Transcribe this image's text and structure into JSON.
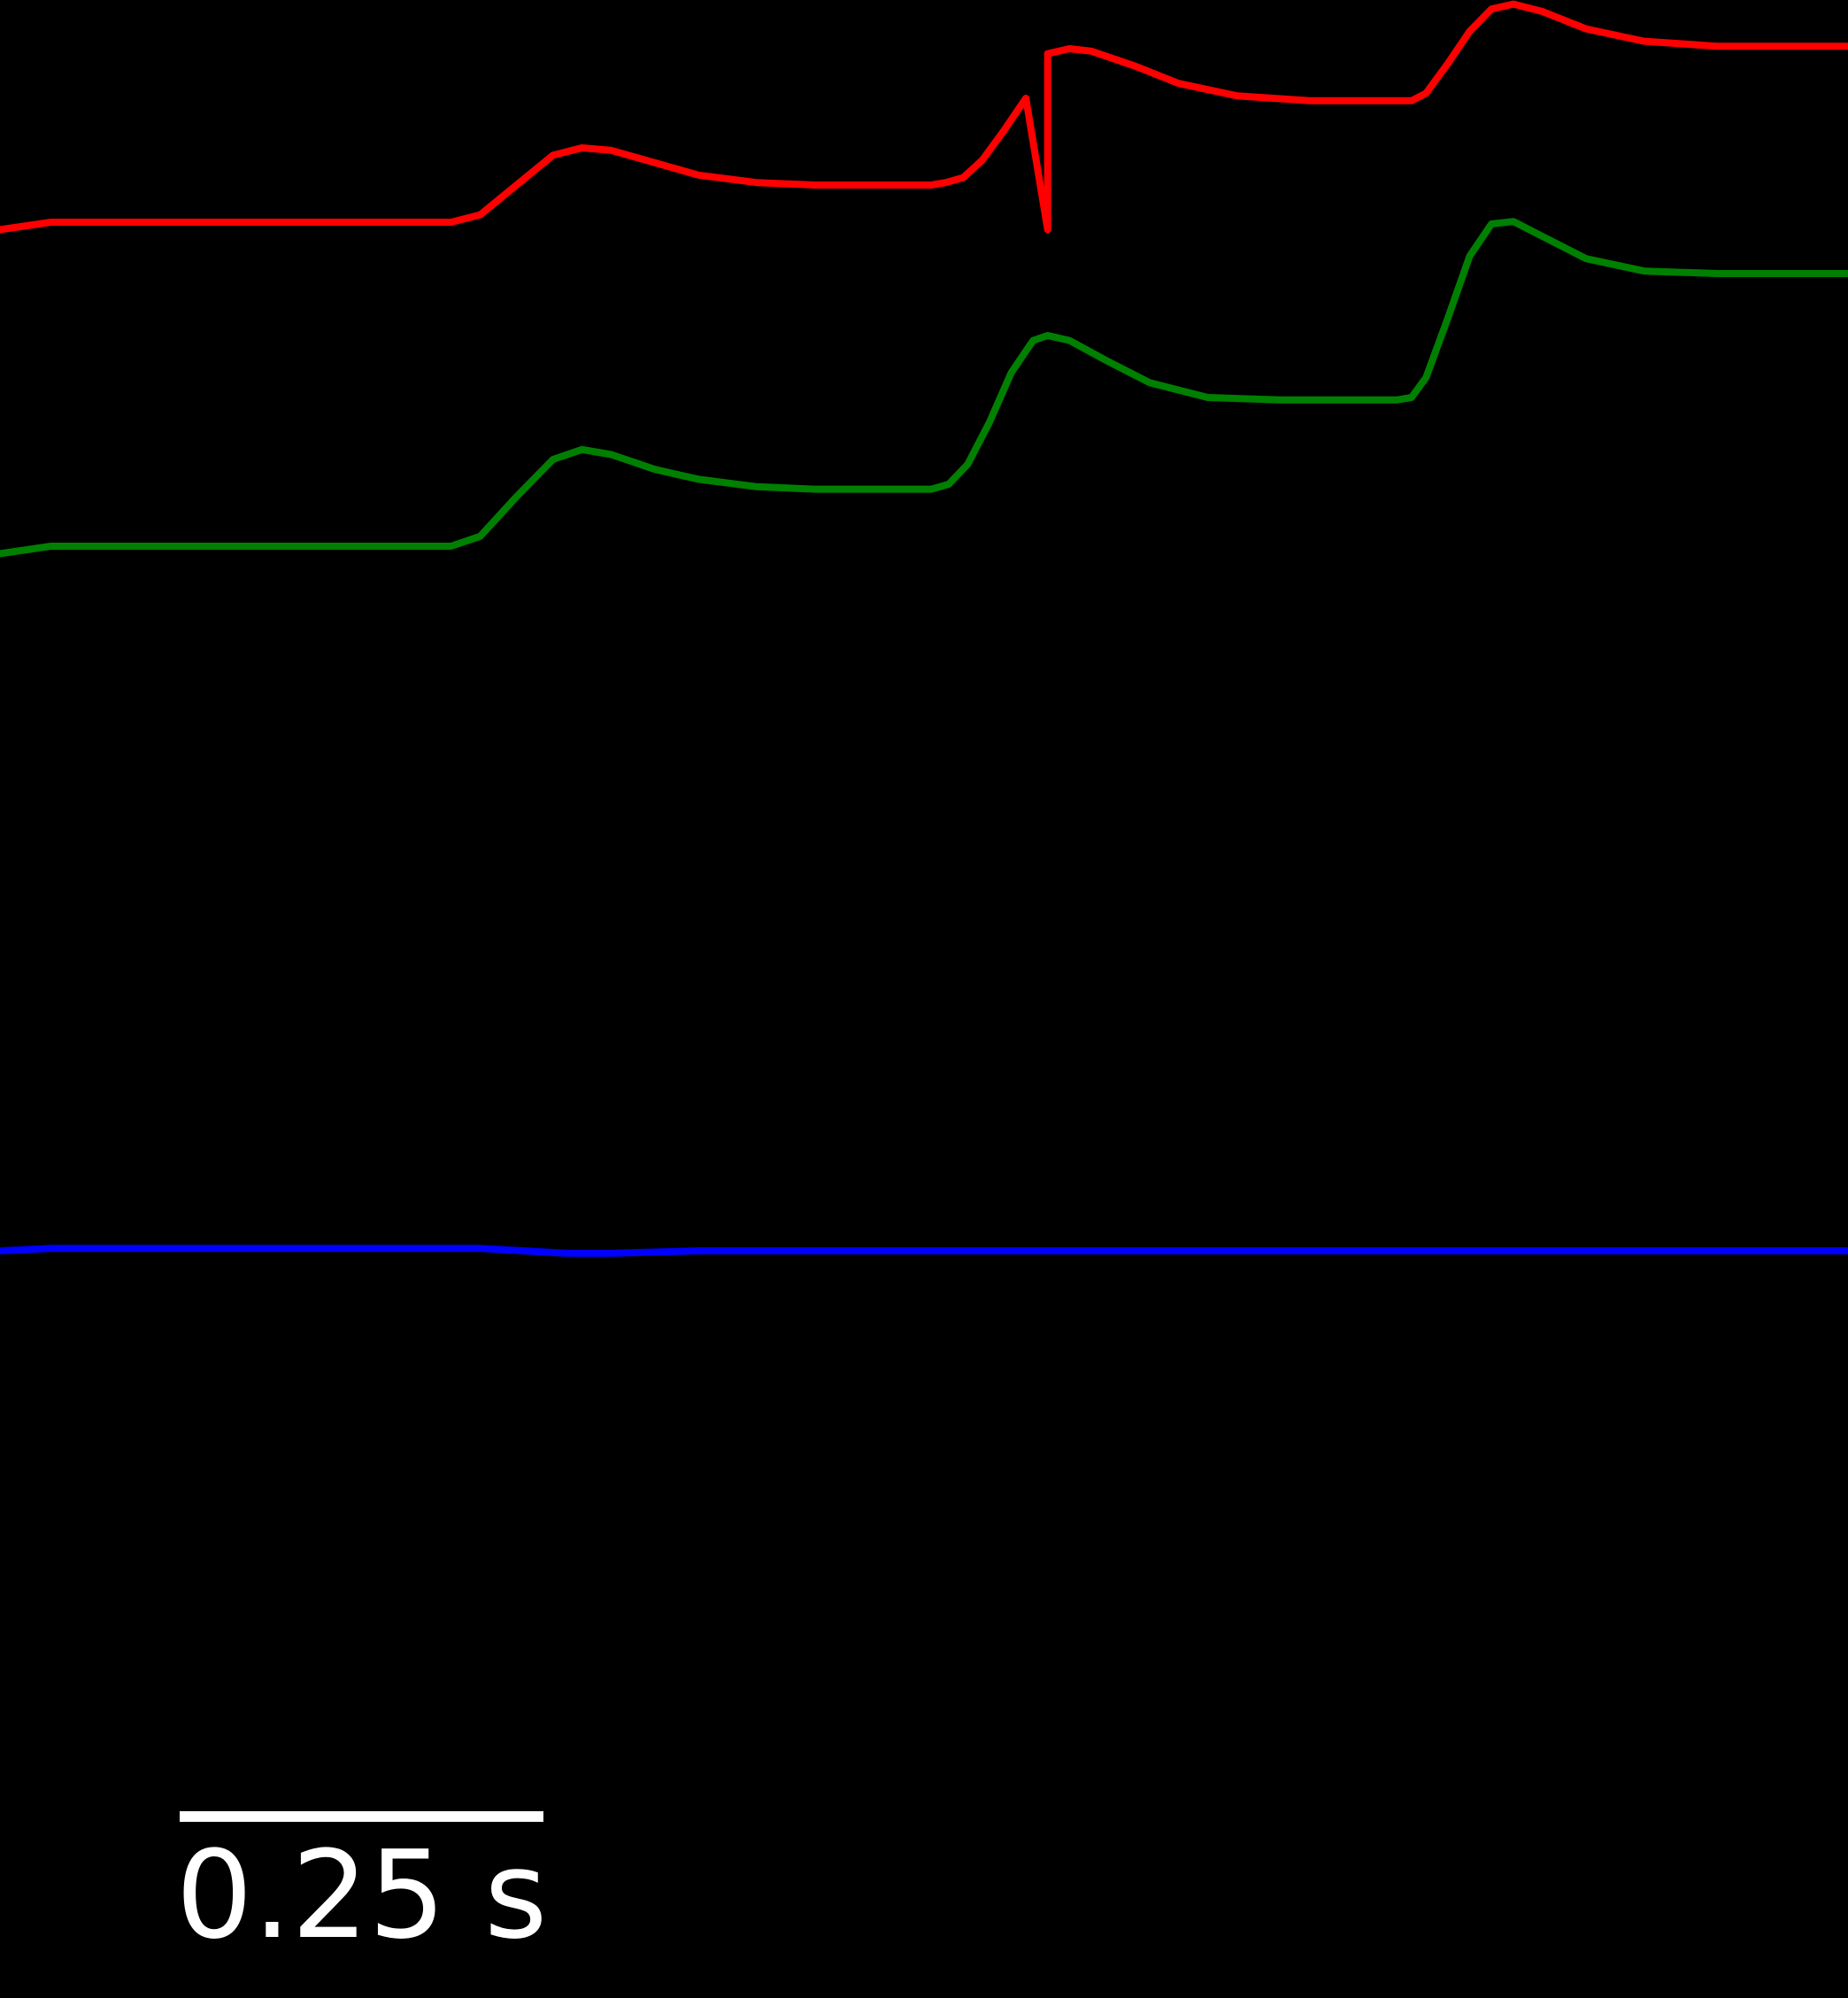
{
  "chart_data": {
    "type": "line",
    "title": "",
    "xlabel": "",
    "ylabel": "",
    "background": "#000000",
    "axes_visible": false,
    "grid": false,
    "legend": "none",
    "x_unit": "s",
    "xlim": [
      0,
      1.27
    ],
    "scale_bar": {
      "length": 0.25,
      "label": "0.25 s",
      "color": "#ffffff"
    },
    "series": [
      {
        "color": "#ff0000",
        "points": [
          [
            0.0,
            1.13
          ],
          [
            0.035,
            1.1
          ],
          [
            0.07,
            1.1
          ],
          [
            0.2,
            1.1
          ],
          [
            0.31,
            1.1
          ],
          [
            0.33,
            1.07
          ],
          [
            0.355,
            0.95
          ],
          [
            0.38,
            0.83
          ],
          [
            0.4,
            0.8
          ],
          [
            0.42,
            0.81
          ],
          [
            0.45,
            0.86
          ],
          [
            0.48,
            0.91
          ],
          [
            0.52,
            0.94
          ],
          [
            0.56,
            0.95
          ],
          [
            0.62,
            0.95
          ],
          [
            0.64,
            0.95
          ],
          [
            0.65,
            0.94
          ],
          [
            0.662,
            0.92
          ],
          [
            0.675,
            0.85
          ],
          [
            0.69,
            0.73
          ],
          [
            0.705,
            0.6
          ],
          [
            0.72,
            1.13
          ],
          [
            0.72,
            0.42
          ],
          [
            0.735,
            0.4
          ],
          [
            0.75,
            0.41
          ],
          [
            0.78,
            0.47
          ],
          [
            0.81,
            0.54
          ],
          [
            0.85,
            0.59
          ],
          [
            0.9,
            0.61
          ],
          [
            0.96,
            0.61
          ],
          [
            0.97,
            0.61
          ],
          [
            0.98,
            0.58
          ],
          [
            0.995,
            0.46
          ],
          [
            1.01,
            0.33
          ],
          [
            1.025,
            0.24
          ],
          [
            1.04,
            0.22
          ],
          [
            1.06,
            0.25
          ],
          [
            1.09,
            0.32
          ],
          [
            1.13,
            0.37
          ],
          [
            1.18,
            0.39
          ],
          [
            1.23,
            0.39
          ],
          [
            1.27,
            0.39
          ]
        ]
      },
      {
        "color": "#008000",
        "points": [
          [
            0.0,
            1.33
          ],
          [
            0.035,
            1.3
          ],
          [
            0.07,
            1.3
          ],
          [
            0.2,
            1.3
          ],
          [
            0.31,
            1.3
          ],
          [
            0.33,
            1.26
          ],
          [
            0.355,
            1.1
          ],
          [
            0.38,
            0.95
          ],
          [
            0.4,
            0.91
          ],
          [
            0.42,
            0.93
          ],
          [
            0.45,
            0.99
          ],
          [
            0.48,
            1.03
          ],
          [
            0.52,
            1.06
          ],
          [
            0.56,
            1.07
          ],
          [
            0.62,
            1.07
          ],
          [
            0.64,
            1.07
          ],
          [
            0.652,
            1.05
          ],
          [
            0.665,
            0.97
          ],
          [
            0.68,
            0.8
          ],
          [
            0.695,
            0.6
          ],
          [
            0.71,
            0.47
          ],
          [
            0.72,
            0.45
          ],
          [
            0.735,
            0.47
          ],
          [
            0.76,
            0.55
          ],
          [
            0.79,
            0.64
          ],
          [
            0.83,
            0.7
          ],
          [
            0.88,
            0.71
          ],
          [
            0.96,
            0.71
          ],
          [
            0.97,
            0.7
          ],
          [
            0.98,
            0.62
          ],
          [
            0.995,
            0.38
          ],
          [
            1.01,
            0.13
          ],
          [
            1.025,
            0.0
          ],
          [
            1.04,
            -0.01
          ],
          [
            1.06,
            0.05
          ],
          [
            1.09,
            0.14
          ],
          [
            1.13,
            0.19
          ],
          [
            1.18,
            0.2
          ],
          [
            1.27,
            0.2
          ]
        ]
      },
      {
        "color": "#0000ff",
        "points": [
          [
            0.0,
            1.25
          ],
          [
            0.035,
            1.24
          ],
          [
            0.07,
            1.24
          ],
          [
            0.2,
            1.24
          ],
          [
            0.33,
            1.24
          ],
          [
            0.36,
            1.25
          ],
          [
            0.39,
            1.26
          ],
          [
            0.42,
            1.26
          ],
          [
            0.48,
            1.25
          ],
          [
            0.56,
            1.25
          ],
          [
            0.66,
            1.25
          ],
          [
            0.72,
            1.25
          ],
          [
            0.8,
            1.25
          ],
          [
            0.9,
            1.25
          ],
          [
            0.99,
            1.25
          ],
          [
            1.03,
            1.25
          ],
          [
            1.1,
            1.25
          ],
          [
            1.27,
            1.25
          ]
        ]
      }
    ]
  }
}
